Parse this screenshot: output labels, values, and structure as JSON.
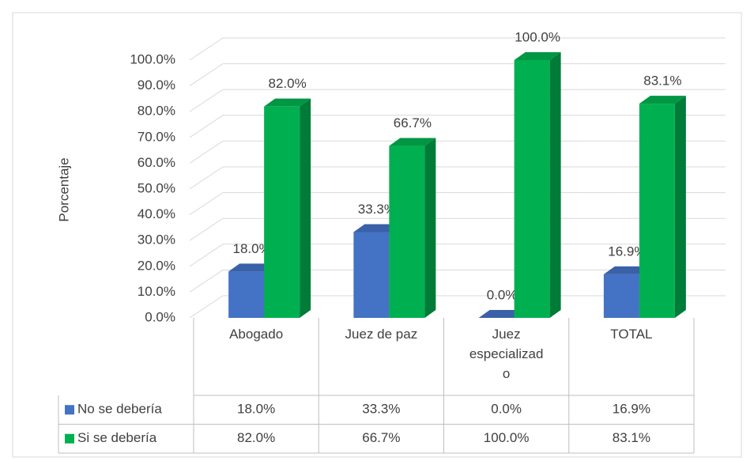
{
  "chart_data": {
    "type": "bar3d",
    "y_label": "Porcentaje",
    "categories": [
      "Abogado",
      "Juez de paz",
      "Juez especializado",
      "TOTAL"
    ],
    "series": [
      {
        "name": "No se debería",
        "color": "#4472c4",
        "values": [
          18.0,
          33.3,
          0.0,
          16.9
        ],
        "value_labels": [
          "18.0%",
          "33.3%",
          "0.0%",
          "16.9%"
        ]
      },
      {
        "name": "Si se debería",
        "color": "#00b050",
        "values": [
          82.0,
          66.7,
          100.0,
          83.1
        ],
        "value_labels": [
          "82.0%",
          "66.7%",
          "100.0%",
          "83.1%"
        ]
      }
    ],
    "ylim": [
      0,
      100
    ],
    "yticks": [
      {
        "value": 0,
        "label": "0.0%"
      },
      {
        "value": 10,
        "label": "10.0%"
      },
      {
        "value": 20,
        "label": "20.0%"
      },
      {
        "value": 30,
        "label": "30.0%"
      },
      {
        "value": 40,
        "label": "40.0%"
      },
      {
        "value": 50,
        "label": "50.0%"
      },
      {
        "value": 60,
        "label": "60.0%"
      },
      {
        "value": 70,
        "label": "70.0%"
      },
      {
        "value": 80,
        "label": "80.0%"
      },
      {
        "value": 90,
        "label": "90.0%"
      },
      {
        "value": 100,
        "label": "100.0%"
      }
    ],
    "grid": true,
    "data_table": true
  }
}
